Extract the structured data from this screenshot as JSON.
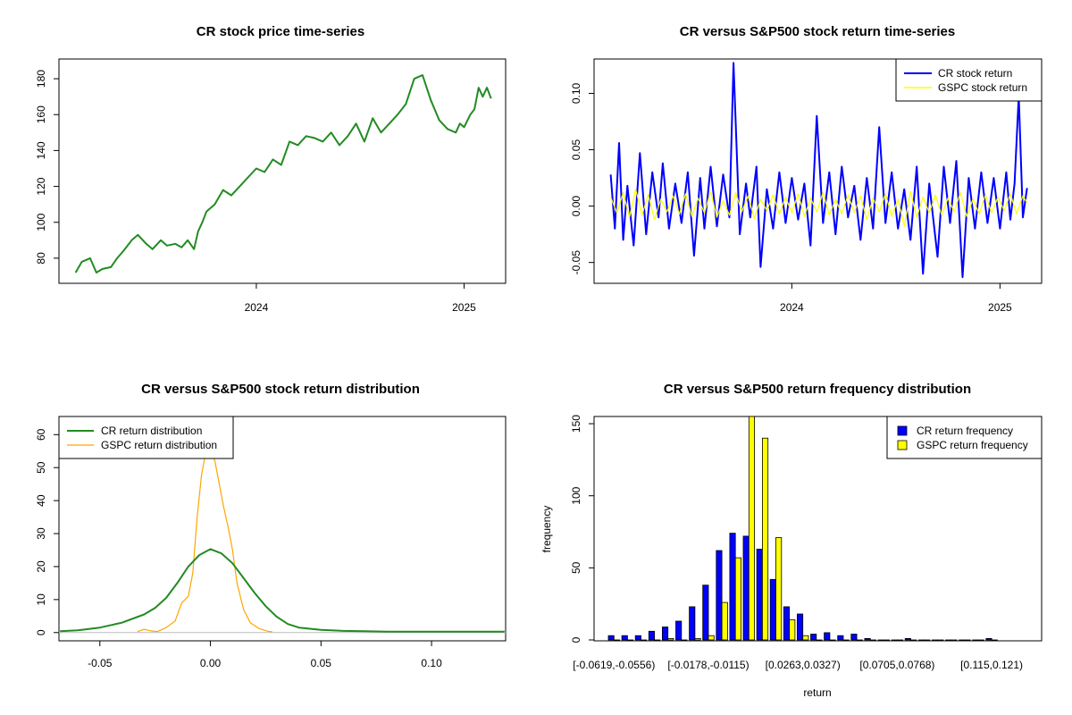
{
  "chart_data": [
    {
      "type": "line",
      "title": "CR stock price time-series",
      "xlabel": "",
      "ylabel": "",
      "x_range": [
        2023.05,
        2025.2
      ],
      "x_ticks": [
        {
          "value": 2024.0,
          "label": "2024"
        },
        {
          "value": 2025.0,
          "label": "2025"
        }
      ],
      "ylim": [
        66,
        191
      ],
      "y_ticks": [
        80,
        100,
        120,
        140,
        160,
        180
      ],
      "series": [
        {
          "name": "CR stock price",
          "color": "#228B22",
          "x": [
            2023.13,
            2023.16,
            2023.2,
            2023.23,
            2023.26,
            2023.3,
            2023.33,
            2023.36,
            2023.4,
            2023.43,
            2023.47,
            2023.5,
            2023.54,
            2023.57,
            2023.61,
            2023.64,
            2023.67,
            2023.7,
            2023.72,
            2023.74,
            2023.76,
            2023.8,
            2023.84,
            2023.88,
            2023.92,
            2023.96,
            2024.0,
            2024.04,
            2024.08,
            2024.12,
            2024.16,
            2024.2,
            2024.24,
            2024.28,
            2024.32,
            2024.36,
            2024.4,
            2024.44,
            2024.48,
            2024.52,
            2024.56,
            2024.6,
            2024.64,
            2024.68,
            2024.72,
            2024.76,
            2024.8,
            2024.84,
            2024.88,
            2024.92,
            2024.96,
            2024.98,
            2025.0,
            2025.03,
            2025.05,
            2025.07,
            2025.09,
            2025.11,
            2025.13
          ],
          "values": [
            72,
            78,
            80,
            72,
            74,
            75,
            80,
            84,
            90,
            93,
            88,
            85,
            90,
            87,
            88,
            86,
            90,
            85,
            95,
            100,
            106,
            110,
            118,
            115,
            120,
            125,
            130,
            128,
            135,
            132,
            145,
            143,
            148,
            147,
            145,
            150,
            143,
            148,
            155,
            145,
            158,
            150,
            155,
            160,
            166,
            180,
            182,
            168,
            157,
            152,
            150,
            155,
            153,
            160,
            163,
            175,
            170,
            175,
            169
          ]
        }
      ]
    },
    {
      "type": "line",
      "title": "CR versus S&P500 stock return time-series",
      "xlabel": "",
      "ylabel": "",
      "x_range": [
        2023.05,
        2025.2
      ],
      "x_ticks": [
        {
          "value": 2024.0,
          "label": "2024"
        },
        {
          "value": 2025.0,
          "label": "2025"
        }
      ],
      "ylim": [
        -0.0685,
        0.1305
      ],
      "y_ticks": [
        {
          "value": -0.05,
          "label": "-0.05"
        },
        {
          "value": 0.0,
          "label": "0.00"
        },
        {
          "value": 0.05,
          "label": "0.05"
        },
        {
          "value": 0.1,
          "label": "0.10"
        }
      ],
      "legend": {
        "position": "top-right",
        "entries": [
          "CR stock return",
          "GSPC stock return"
        ]
      },
      "series": [
        {
          "name": "CR stock return",
          "color": "#0000FF",
          "x": [
            2023.13,
            2023.15,
            2023.17,
            2023.19,
            2023.21,
            2023.24,
            2023.27,
            2023.3,
            2023.33,
            2023.36,
            2023.38,
            2023.41,
            2023.44,
            2023.47,
            2023.5,
            2023.53,
            2023.56,
            2023.58,
            2023.61,
            2023.64,
            2023.67,
            2023.7,
            2023.72,
            2023.75,
            2023.78,
            2023.8,
            2023.83,
            2023.85,
            2023.88,
            2023.91,
            2023.94,
            2023.97,
            2024.0,
            2024.03,
            2024.06,
            2024.09,
            2024.12,
            2024.15,
            2024.18,
            2024.21,
            2024.24,
            2024.27,
            2024.3,
            2024.33,
            2024.36,
            2024.39,
            2024.42,
            2024.45,
            2024.48,
            2024.51,
            2024.54,
            2024.57,
            2024.6,
            2024.63,
            2024.66,
            2024.7,
            2024.73,
            2024.76,
            2024.79,
            2024.82,
            2024.85,
            2024.88,
            2024.91,
            2024.94,
            2024.97,
            2025.0,
            2025.03,
            2025.05,
            2025.07,
            2025.09,
            2025.11,
            2025.13
          ],
          "values": [
            0.028,
            -0.02,
            0.056,
            -0.03,
            0.018,
            -0.035,
            0.047,
            -0.025,
            0.03,
            -0.01,
            0.038,
            -0.02,
            0.02,
            -0.015,
            0.03,
            -0.044,
            0.025,
            -0.02,
            0.035,
            -0.018,
            0.028,
            -0.01,
            0.127,
            -0.025,
            0.02,
            -0.01,
            0.035,
            -0.054,
            0.015,
            -0.02,
            0.03,
            -0.015,
            0.025,
            -0.012,
            0.02,
            -0.035,
            0.08,
            -0.015,
            0.03,
            -0.025,
            0.035,
            -0.01,
            0.018,
            -0.03,
            0.025,
            -0.02,
            0.07,
            -0.015,
            0.03,
            -0.02,
            0.015,
            -0.03,
            0.035,
            -0.06,
            0.02,
            -0.045,
            0.035,
            -0.015,
            0.04,
            -0.063,
            0.025,
            -0.02,
            0.03,
            -0.015,
            0.025,
            -0.02,
            0.03,
            -0.012,
            0.02,
            0.098,
            -0.01,
            0.016
          ]
        },
        {
          "name": "GSPC stock return",
          "color": "#FFFF00",
          "x": [
            2023.13,
            2023.16,
            2023.19,
            2023.22,
            2023.25,
            2023.28,
            2023.31,
            2023.34,
            2023.37,
            2023.4,
            2023.43,
            2023.46,
            2023.49,
            2023.52,
            2023.55,
            2023.58,
            2023.61,
            2023.64,
            2023.67,
            2023.7,
            2023.73,
            2023.76,
            2023.79,
            2023.82,
            2023.85,
            2023.88,
            2023.91,
            2023.94,
            2023.97,
            2024.0,
            2024.03,
            2024.06,
            2024.09,
            2024.12,
            2024.15,
            2024.18,
            2024.21,
            2024.24,
            2024.27,
            2024.3,
            2024.33,
            2024.36,
            2024.39,
            2024.42,
            2024.45,
            2024.48,
            2024.51,
            2024.54,
            2024.57,
            2024.6,
            2024.63,
            2024.66,
            2024.69,
            2024.72,
            2024.75,
            2024.78,
            2024.81,
            2024.84,
            2024.87,
            2024.9,
            2024.93,
            2024.96,
            2024.99,
            2025.02,
            2025.05,
            2025.08,
            2025.11,
            2025.13
          ],
          "values": [
            0.008,
            -0.006,
            0.012,
            -0.01,
            0.015,
            -0.008,
            0.01,
            -0.012,
            0.006,
            -0.005,
            0.009,
            -0.007,
            0.011,
            -0.009,
            0.007,
            -0.006,
            0.013,
            -0.01,
            0.005,
            -0.008,
            0.012,
            -0.005,
            0.009,
            -0.011,
            0.006,
            -0.004,
            0.01,
            -0.007,
            0.008,
            -0.006,
            0.011,
            -0.009,
            0.007,
            -0.005,
            0.012,
            -0.008,
            0.006,
            -0.007,
            0.01,
            -0.006,
            0.009,
            -0.012,
            0.007,
            -0.005,
            0.011,
            -0.009,
            0.006,
            -0.018,
            0.013,
            -0.01,
            0.008,
            -0.006,
            0.01,
            -0.008,
            0.007,
            -0.005,
            0.012,
            -0.009,
            0.006,
            -0.007,
            0.01,
            -0.006,
            0.008,
            -0.004,
            0.011,
            -0.007,
            0.009,
            0.003
          ]
        }
      ]
    },
    {
      "type": "line",
      "title": "CR versus S&P500 stock return distribution",
      "xlabel": "",
      "ylabel": "",
      "xlim": [
        -0.0685,
        0.1335
      ],
      "x_ticks": [
        {
          "value": -0.05,
          "label": "-0.05"
        },
        {
          "value": 0.0,
          "label": "0.00"
        },
        {
          "value": 0.05,
          "label": "0.05"
        },
        {
          "value": 0.1,
          "label": "0.10"
        }
      ],
      "ylim": [
        -2.5,
        65.5
      ],
      "y_ticks": [
        0,
        10,
        20,
        30,
        40,
        50,
        60
      ],
      "legend": {
        "position": "top-left",
        "entries": [
          "CR return distribution",
          "GSPC return distribution"
        ]
      },
      "series": [
        {
          "name": "CR return distribution",
          "color": "#228B22",
          "x": [
            -0.068,
            -0.06,
            -0.05,
            -0.04,
            -0.03,
            -0.025,
            -0.02,
            -0.015,
            -0.01,
            -0.005,
            0.0,
            0.005,
            0.01,
            0.015,
            0.02,
            0.025,
            0.03,
            0.035,
            0.04,
            0.05,
            0.06,
            0.07,
            0.08,
            0.1,
            0.12,
            0.133
          ],
          "values": [
            0.4,
            0.7,
            1.5,
            3.0,
            5.5,
            7.5,
            10.5,
            15.0,
            20.0,
            23.5,
            25.3,
            24.0,
            21.0,
            16.5,
            12.0,
            8.0,
            4.8,
            2.6,
            1.5,
            0.8,
            0.5,
            0.4,
            0.3,
            0.3,
            0.3,
            0.3
          ]
        },
        {
          "name": "GSPC return distribution",
          "color": "#FFA500",
          "x": [
            -0.033,
            -0.03,
            -0.027,
            -0.024,
            -0.02,
            -0.016,
            -0.013,
            -0.01,
            -0.008,
            -0.006,
            -0.004,
            -0.002,
            0.0,
            0.002,
            0.004,
            0.006,
            0.008,
            0.01,
            0.012,
            0.015,
            0.018,
            0.022,
            0.026,
            0.028
          ],
          "values": [
            0.3,
            1.0,
            0.5,
            0.3,
            1.5,
            3.5,
            9.0,
            11.0,
            18.0,
            35.0,
            48.0,
            55.0,
            56.0,
            52.0,
            45.0,
            38.0,
            32.0,
            25.0,
            15.0,
            7.0,
            3.0,
            1.2,
            0.4,
            0.2
          ]
        },
        {
          "name": "baseline",
          "color": "#BEBEBE",
          "x": [
            -0.0685,
            0.1335
          ],
          "values": [
            0,
            0
          ]
        }
      ]
    },
    {
      "type": "bar",
      "title": "CR versus S&P500 return frequency distribution",
      "xlabel": "return",
      "ylabel": "frequency",
      "ylim": [
        0,
        155
      ],
      "y_ticks": [
        0,
        50,
        100,
        150
      ],
      "categories": [
        "[-0.0619,-0.0556)",
        "[-0.0556,-0.0493)",
        "[-0.0493,-0.043)",
        "[-0.043,-0.0367)",
        "[-0.0367,-0.0304)",
        "[-0.0304,-0.0241)",
        "[-0.0241,-0.0178)",
        "[-0.0178,-0.0115)",
        "[-0.0115,-0.00519)",
        "[-0.00519,0.00111)",
        "[0.00111,0.00741)",
        "[0.00741,0.0137)",
        "[0.0137,0.02)",
        "[0.02,0.0263)",
        "[0.0263,0.0327)",
        "[0.0327,0.039)",
        "[0.039,0.0453)",
        "[0.0453,0.0516)",
        "[0.0516,0.0579)",
        "[0.0579,0.0642)",
        "[0.0642,0.0705)",
        "[0.0705,0.0768)",
        "[0.0768,0.0831)",
        "[0.0831,0.0894)",
        "[0.0894,0.0957)",
        "[0.0957,0.102)",
        "[0.102,0.109)",
        "[0.109,0.115)",
        "[0.115,0.121)"
      ],
      "visible_category_labels": [
        {
          "index": 0,
          "label": "[-0.0619,-0.0556)"
        },
        {
          "index": 7,
          "label": "[-0.0178,-0.0115)"
        },
        {
          "index": 14,
          "label": "[0.0263,0.0327)"
        },
        {
          "index": 21,
          "label": "[0.0705,0.0768)"
        },
        {
          "index": 28,
          "label": "[0.115,0.121)"
        }
      ],
      "legend": {
        "position": "top-right",
        "entries": [
          "CR return frequency",
          "GSPC return frequency"
        ]
      },
      "series": [
        {
          "name": "CR return frequency",
          "color": "#0000FF",
          "values": [
            3,
            3,
            3,
            6,
            9,
            13,
            23,
            38,
            62,
            74,
            72,
            63,
            42,
            23,
            18,
            4,
            5,
            3,
            4,
            1,
            0,
            0,
            1,
            0,
            0,
            0,
            0,
            0,
            1
          ]
        },
        {
          "name": "GSPC return frequency",
          "color": "#FFFF00",
          "values": [
            0,
            0,
            0,
            0,
            1,
            0,
            1,
            3,
            26,
            57,
            155,
            140,
            71,
            14,
            3,
            0,
            0,
            0,
            0,
            0,
            0,
            0,
            0,
            0,
            0,
            0,
            0,
            0,
            0
          ]
        }
      ]
    }
  ]
}
